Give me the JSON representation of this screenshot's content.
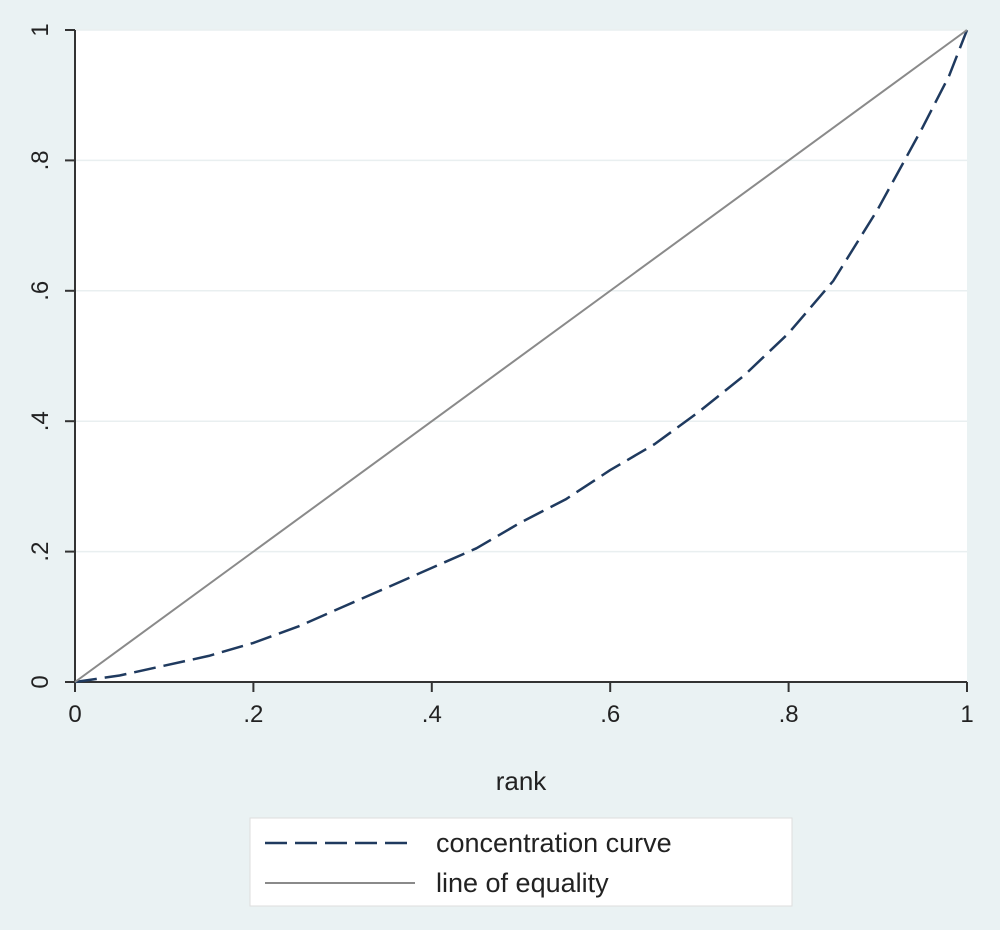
{
  "chart_data": {
    "type": "line",
    "title": "",
    "xlabel": "rank",
    "ylabel": "",
    "xlim": [
      0,
      1
    ],
    "ylim": [
      0,
      1
    ],
    "x_ticks": [
      {
        "value": 0,
        "label": "0"
      },
      {
        "value": 0.2,
        "label": ".2"
      },
      {
        "value": 0.4,
        "label": ".4"
      },
      {
        "value": 0.6,
        "label": ".6"
      },
      {
        "value": 0.8,
        "label": ".8"
      },
      {
        "value": 1,
        "label": "1"
      }
    ],
    "y_ticks": [
      {
        "value": 0,
        "label": "0"
      },
      {
        "value": 0.2,
        "label": ".2"
      },
      {
        "value": 0.4,
        "label": ".4"
      },
      {
        "value": 0.6,
        "label": ".6"
      },
      {
        "value": 0.8,
        "label": ".8"
      },
      {
        "value": 1,
        "label": "1"
      }
    ],
    "grid": "horizontal",
    "legend_position": "bottom",
    "series": [
      {
        "name": "concentration curve",
        "style": "dashed",
        "color": "#1f3a5f",
        "x": [
          0,
          0.05,
          0.1,
          0.15,
          0.2,
          0.25,
          0.3,
          0.35,
          0.4,
          0.45,
          0.5,
          0.55,
          0.6,
          0.65,
          0.7,
          0.75,
          0.8,
          0.85,
          0.9,
          0.95,
          0.98,
          1
        ],
        "y": [
          0,
          0.01,
          0.025,
          0.04,
          0.06,
          0.085,
          0.115,
          0.145,
          0.175,
          0.205,
          0.245,
          0.28,
          0.325,
          0.365,
          0.415,
          0.47,
          0.535,
          0.615,
          0.725,
          0.85,
          0.93,
          1
        ]
      },
      {
        "name": "line of equality",
        "style": "solid",
        "color": "#8a8a8a",
        "x": [
          0,
          1
        ],
        "y": [
          0,
          1
        ]
      }
    ]
  }
}
